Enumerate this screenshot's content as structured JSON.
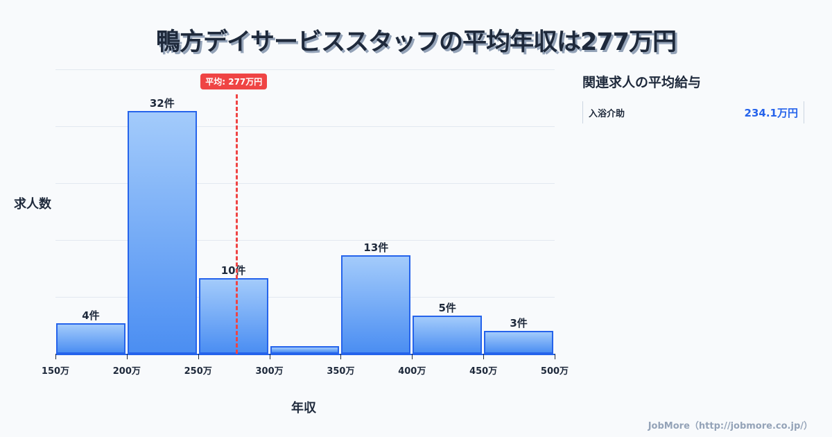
{
  "title": "鴨方デイサービススタッフの平均年収は277万円",
  "chart_data": {
    "type": "bar",
    "title": "鴨方デイサービススタッフの平均年収は277万円",
    "xlabel": "年収",
    "ylabel": "求人数",
    "categories": [
      "150-200万",
      "200-250万",
      "250-300万",
      "300-350万",
      "350-400万",
      "400-450万",
      "450-500万"
    ],
    "values": [
      4,
      32,
      10,
      1,
      13,
      5,
      3
    ],
    "value_labels": [
      "4件",
      "32件",
      "10件",
      "",
      "13件",
      "5件",
      "3件"
    ],
    "x_ticks": [
      "150万",
      "200万",
      "250万",
      "300万",
      "350万",
      "400万",
      "450万",
      "500万"
    ],
    "xlim": [
      150,
      500
    ],
    "ylim": [
      0,
      37.5
    ],
    "grid": true,
    "average": {
      "value": 277,
      "label": "平均: 277万円",
      "color": "#ef4444"
    },
    "bar_color": "#2563eb"
  },
  "sidebar": {
    "title": "関連求人の平均給与",
    "items": [
      {
        "name": "入浴介助",
        "value": "234.1万円"
      }
    ]
  },
  "footer": "JobMore（http://jobmore.co.jp/）"
}
